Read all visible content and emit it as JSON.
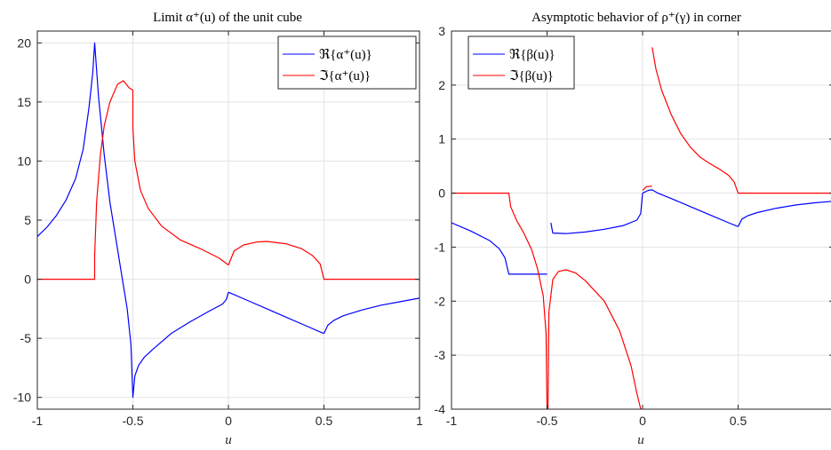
{
  "colors": {
    "real": "#0000ff",
    "imag": "#ff0000",
    "grid": "#e3e3e3",
    "axis": "#262626"
  },
  "chart_data": [
    {
      "type": "line",
      "title": "Limit α⁺(u) of the unit cube",
      "xlabel": "u",
      "ylabel": "",
      "xlim": [
        -1,
        1
      ],
      "ylim": [
        -11,
        21
      ],
      "xticks": [
        -1,
        -0.5,
        0,
        0.5,
        1
      ],
      "xtick_labels": [
        "-1",
        "-0.5",
        "0",
        "0.5",
        "1"
      ],
      "yticks": [
        -10,
        -5,
        0,
        5,
        10,
        15,
        20
      ],
      "ytick_labels": [
        "-10",
        "-5",
        "0",
        "5",
        "10",
        "15",
        "20"
      ],
      "grid": true,
      "legend_position": "top-right",
      "series": [
        {
          "name": "ℜ{α⁺(u)}",
          "color": "#0000ff",
          "segments": [
            [
              [
                -1,
                3.6
              ],
              [
                -0.95,
                4.4
              ],
              [
                -0.9,
                5.4
              ],
              [
                -0.85,
                6.7
              ],
              [
                -0.8,
                8.5
              ],
              [
                -0.76,
                11
              ],
              [
                -0.73,
                14.5
              ],
              [
                -0.71,
                17.5
              ],
              [
                -0.7,
                20
              ],
              [
                -0.68,
                15.5
              ],
              [
                -0.65,
                10.5
              ],
              [
                -0.62,
                6.5
              ],
              [
                -0.59,
                3.5
              ],
              [
                -0.56,
                0.5
              ],
              [
                -0.53,
                -2.5
              ],
              [
                -0.51,
                -5.5
              ],
              [
                -0.5,
                -10
              ],
              [
                -0.49,
                -8.2
              ],
              [
                -0.47,
                -7.3
              ],
              [
                -0.44,
                -6.6
              ],
              [
                -0.4,
                -6
              ],
              [
                -0.35,
                -5.3
              ],
              [
                -0.3,
                -4.6
              ],
              [
                -0.2,
                -3.6
              ],
              [
                -0.1,
                -2.7
              ],
              [
                -0.03,
                -2.1
              ],
              [
                -0.01,
                -1.7
              ],
              [
                0,
                -1.1
              ]
            ],
            [
              [
                0,
                -1.1
              ],
              [
                0.1,
                -1.8
              ],
              [
                0.2,
                -2.5
              ],
              [
                0.3,
                -3.2
              ],
              [
                0.4,
                -3.9
              ],
              [
                0.5,
                -4.6
              ]
            ],
            [
              [
                0.5,
                -4.6
              ],
              [
                0.52,
                -3.9
              ],
              [
                0.55,
                -3.5
              ],
              [
                0.6,
                -3.1
              ],
              [
                0.7,
                -2.6
              ],
              [
                0.8,
                -2.2
              ],
              [
                0.9,
                -1.9
              ],
              [
                1,
                -1.6
              ]
            ]
          ]
        },
        {
          "name": "ℑ{α⁺(u)}",
          "color": "#ff0000",
          "segments": [
            [
              [
                -1,
                0
              ],
              [
                -0.7,
                0
              ],
              [
                -0.7,
                2
              ],
              [
                -0.69,
                6.5
              ],
              [
                -0.67,
                10.5
              ],
              [
                -0.65,
                13
              ],
              [
                -0.62,
                15
              ],
              [
                -0.58,
                16.5
              ],
              [
                -0.55,
                16.8
              ],
              [
                -0.52,
                16.2
              ],
              [
                -0.5,
                16
              ],
              [
                -0.5,
                12.8
              ],
              [
                -0.49,
                10
              ],
              [
                -0.46,
                7.5
              ],
              [
                -0.42,
                6
              ],
              [
                -0.35,
                4.5
              ],
              [
                -0.25,
                3.3
              ],
              [
                -0.15,
                2.6
              ],
              [
                -0.05,
                1.8
              ],
              [
                0,
                1.2
              ]
            ],
            [
              [
                0,
                1.2
              ],
              [
                0.03,
                2.4
              ],
              [
                0.08,
                2.9
              ],
              [
                0.15,
                3.15
              ],
              [
                0.2,
                3.2
              ],
              [
                0.3,
                3.0
              ],
              [
                0.38,
                2.6
              ],
              [
                0.44,
                2.0
              ],
              [
                0.48,
                1.3
              ],
              [
                0.5,
                0
              ],
              [
                1,
                0
              ]
            ]
          ]
        }
      ]
    },
    {
      "type": "line",
      "title": "Asymptotic behavior of ρ⁺(γ) in corner",
      "xlabel": "u",
      "ylabel": "",
      "xlim": [
        -1,
        1
      ],
      "ylim": [
        -4,
        3
      ],
      "xticks": [
        -1,
        -0.5,
        0,
        0.5,
        1
      ],
      "xtick_labels": [
        "-1",
        "-0.5",
        "0",
        "0.5",
        "1"
      ],
      "yticks": [
        -4,
        -3,
        -2,
        -1,
        0,
        1,
        2,
        3
      ],
      "ytick_labels": [
        "-4",
        "-3",
        "-2",
        "-1",
        "0",
        "1",
        "2",
        "3"
      ],
      "grid": true,
      "legend_position": "top-left",
      "series": [
        {
          "name": "ℜ{β(u)}",
          "color": "#0000ff",
          "segments": [
            [
              [
                -1,
                -0.55
              ],
              [
                -0.9,
                -0.7
              ],
              [
                -0.8,
                -0.88
              ],
              [
                -0.75,
                -1.03
              ],
              [
                -0.72,
                -1.2
              ],
              [
                -0.7,
                -1.5
              ],
              [
                -0.5,
                -1.5
              ]
            ],
            [
              [
                -0.48,
                -0.55
              ],
              [
                -0.47,
                -0.74
              ],
              [
                -0.4,
                -0.75
              ],
              [
                -0.3,
                -0.72
              ],
              [
                -0.2,
                -0.67
              ],
              [
                -0.1,
                -0.6
              ],
              [
                -0.03,
                -0.5
              ],
              [
                -0.01,
                -0.38
              ],
              [
                0,
                0
              ]
            ],
            [
              [
                0,
                0
              ],
              [
                0.03,
                0.05
              ],
              [
                0.05,
                0.06
              ],
              [
                0.08,
                0
              ],
              [
                0.15,
                -0.1
              ],
              [
                0.25,
                -0.25
              ],
              [
                0.35,
                -0.4
              ],
              [
                0.45,
                -0.55
              ],
              [
                0.5,
                -0.62
              ]
            ],
            [
              [
                0.5,
                -0.62
              ],
              [
                0.52,
                -0.48
              ],
              [
                0.55,
                -0.42
              ],
              [
                0.6,
                -0.36
              ],
              [
                0.7,
                -0.28
              ],
              [
                0.8,
                -0.22
              ],
              [
                0.9,
                -0.18
              ],
              [
                1,
                -0.15
              ]
            ]
          ]
        },
        {
          "name": "ℑ{β(u)}",
          "color": "#ff0000",
          "segments": [
            [
              [
                -1,
                0
              ],
              [
                -0.7,
                0
              ],
              [
                -0.69,
                -0.25
              ],
              [
                -0.66,
                -0.5
              ],
              [
                -0.62,
                -0.75
              ],
              [
                -0.58,
                -1.05
              ],
              [
                -0.55,
                -1.4
              ],
              [
                -0.52,
                -1.9
              ],
              [
                -0.505,
                -2.6
              ],
              [
                -0.5,
                -4
              ]
            ],
            [
              [
                -0.495,
                -4
              ],
              [
                -0.49,
                -2.2
              ],
              [
                -0.47,
                -1.6
              ],
              [
                -0.44,
                -1.45
              ],
              [
                -0.4,
                -1.42
              ],
              [
                -0.35,
                -1.48
              ],
              [
                -0.3,
                -1.62
              ],
              [
                -0.2,
                -2.0
              ],
              [
                -0.12,
                -2.55
              ],
              [
                -0.06,
                -3.2
              ],
              [
                -0.03,
                -3.7
              ],
              [
                -0.01,
                -4
              ]
            ],
            [
              [
                0,
                0.05
              ],
              [
                0.02,
                0.12
              ],
              [
                0.05,
                0.13
              ]
            ],
            [
              [
                0.05,
                2.7
              ],
              [
                0.07,
                2.3
              ],
              [
                0.1,
                1.9
              ],
              [
                0.15,
                1.45
              ],
              [
                0.2,
                1.1
              ],
              [
                0.25,
                0.85
              ],
              [
                0.3,
                0.67
              ],
              [
                0.35,
                0.55
              ],
              [
                0.4,
                0.45
              ],
              [
                0.45,
                0.33
              ],
              [
                0.48,
                0.2
              ],
              [
                0.5,
                0
              ],
              [
                1,
                0
              ]
            ]
          ]
        }
      ]
    }
  ]
}
